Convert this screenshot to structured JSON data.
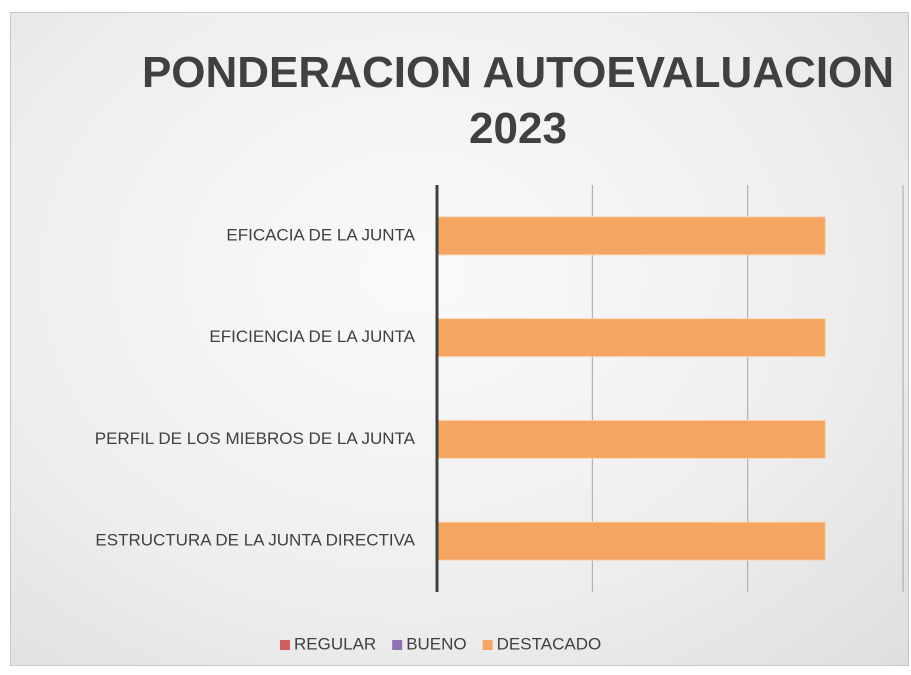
{
  "chart_data": {
    "type": "bar",
    "orientation": "horizontal",
    "title": "PONDERACION AUTOEVALUACION 2023",
    "categories": [
      "EFICACIA DE LA JUNTA",
      "EFICIENCIA DE LA JUNTA",
      "PERFIL DE LOS MIEBROS DE LA JUNTA",
      "ESTRUCTURA DE LA JUNTA DIRECTIVA"
    ],
    "series": [
      {
        "name": "REGULAR",
        "color": "#d0605e",
        "values": [
          0,
          0,
          0,
          0
        ]
      },
      {
        "name": "BUENO",
        "color": "#8e72b4",
        "values": [
          0,
          0,
          0,
          0
        ]
      },
      {
        "name": "DESTACADO",
        "color": "#f5a562",
        "values": [
          2.5,
          2.5,
          2.5,
          2.5
        ]
      }
    ],
    "xlim": [
      0,
      3
    ],
    "xticks": [
      0,
      1,
      2,
      3
    ],
    "grid": true,
    "legend": "bottom"
  }
}
